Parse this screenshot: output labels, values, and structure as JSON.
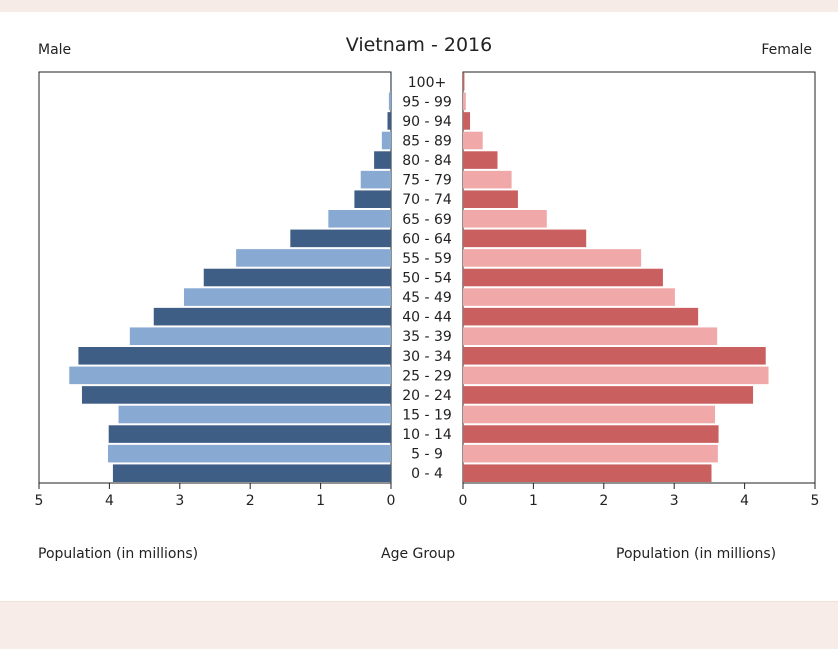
{
  "chart_data": {
    "type": "bar",
    "title": "Vietnam - 2016",
    "left_label": "Male",
    "right_label": "Female",
    "left_xlabel": "Population (in millions)",
    "center_label": "Age Group",
    "right_xlabel": "Population (in millions)",
    "xlim": [
      0,
      5
    ],
    "ticks": [
      "0",
      "1",
      "2",
      "3",
      "4",
      "5"
    ],
    "categories": [
      "100+",
      "95 - 99",
      "90 - 94",
      "85 - 89",
      "80 - 84",
      "75 - 79",
      "70 - 74",
      "65 - 69",
      "60 - 64",
      "55 - 59",
      "50 - 54",
      "45 - 49",
      "40 - 44",
      "35 - 39",
      "30 - 34",
      "25 - 29",
      "20 - 24",
      "15 - 19",
      "10 - 14",
      "5 - 9",
      "0 - 4"
    ],
    "series": [
      {
        "name": "Male",
        "values": [
          0.01,
          0.03,
          0.05,
          0.13,
          0.24,
          0.43,
          0.52,
          0.89,
          1.43,
          2.2,
          2.66,
          2.94,
          3.37,
          3.71,
          4.44,
          4.57,
          4.39,
          3.87,
          4.01,
          4.02,
          3.95
        ],
        "colors": [
          "#3f5e86",
          "#88a9d2"
        ]
      },
      {
        "name": "Female",
        "values": [
          0.02,
          0.04,
          0.1,
          0.28,
          0.49,
          0.69,
          0.78,
          1.19,
          1.75,
          2.53,
          2.84,
          3.01,
          3.34,
          3.61,
          4.3,
          4.34,
          4.12,
          3.58,
          3.63,
          3.62,
          3.53
        ],
        "colors": [
          "#c9605f",
          "#f0a8a8"
        ]
      }
    ]
  }
}
